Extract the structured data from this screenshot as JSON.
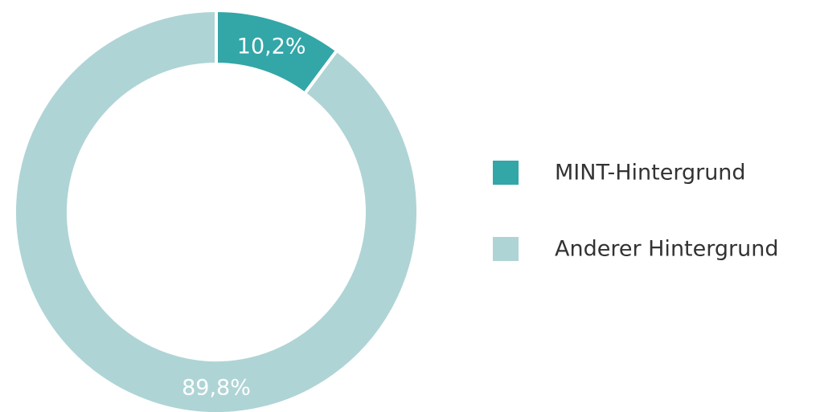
{
  "chart_data": {
    "type": "pie",
    "categories": [
      "MINT-Hintergrund",
      "Anderer Hintergrund"
    ],
    "values": [
      10.2,
      89.8
    ],
    "value_labels": [
      "10,2%",
      "89,8%"
    ],
    "colors": [
      "#33a6a8",
      "#afd4d5"
    ],
    "legend": "right"
  }
}
